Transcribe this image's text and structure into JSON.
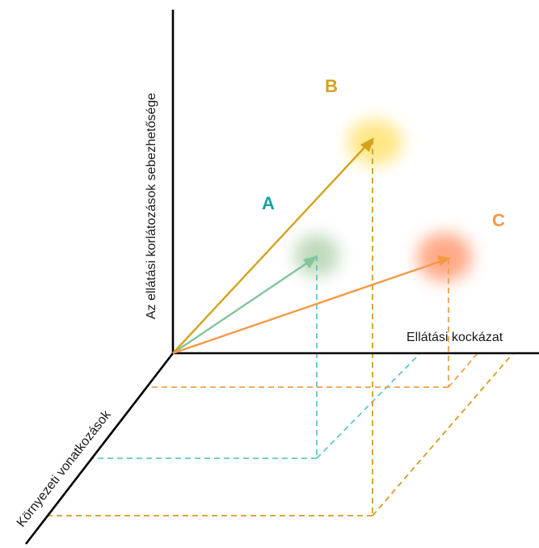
{
  "axes": {
    "vertical_label": "Az ellátási korlátozások sebezhetősége",
    "horizontal_label": "Ellátási kockázat",
    "diagonal_label": "Környezeti vonatkozások"
  },
  "points": [
    {
      "label": "A",
      "color": "#1aa0a0",
      "arrow_color": "#82c49c",
      "glow_color": "#a9cda4",
      "guide_color": "#5ec7c7"
    },
    {
      "label": "B",
      "color": "#d4a21c",
      "arrow_color": "#d4a21c",
      "glow_color": "#ffe066",
      "guide_color": "#d79a24"
    },
    {
      "label": "C",
      "color": "#f39a45",
      "arrow_color": "#f39a45",
      "glow_color": "#ff9a72",
      "guide_color": "#f0a04a"
    }
  ],
  "colors": {
    "axis": "#000000"
  }
}
